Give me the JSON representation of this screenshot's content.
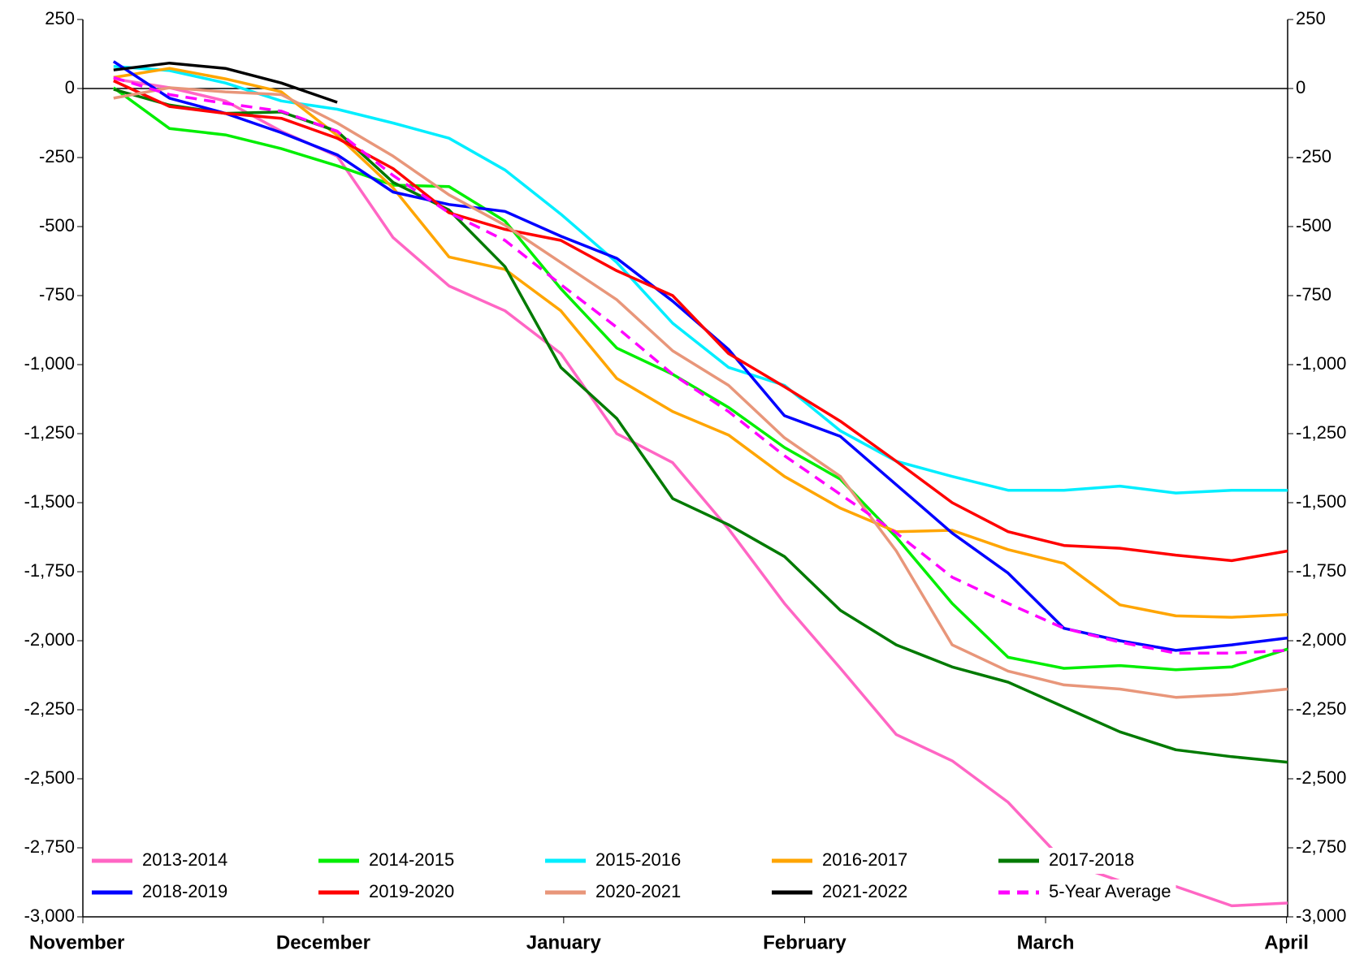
{
  "chart_data": {
    "type": "line",
    "x": [
      0,
      1,
      2,
      3,
      4,
      5,
      6,
      7,
      8,
      9,
      10,
      11,
      12,
      13,
      14,
      15,
      16,
      17,
      18,
      19,
      20,
      21
    ],
    "xlim": [
      -0.55,
      21
    ],
    "xticks": [
      {
        "value": -0.55,
        "label": "November"
      },
      {
        "value": 3.75,
        "label": "December"
      },
      {
        "value": 8.05,
        "label": "January"
      },
      {
        "value": 12.36,
        "label": "February"
      },
      {
        "value": 16.67,
        "label": "March"
      },
      {
        "value": 20.98,
        "label": "April"
      }
    ],
    "ylim": [
      -3000,
      250
    ],
    "yticks": [
      250,
      0,
      -250,
      -500,
      -750,
      {
        "value": -1000,
        "label": "-1,000"
      },
      {
        "value": -1250,
        "label": "-1,250"
      },
      {
        "value": -1500,
        "label": "-1,500"
      },
      {
        "value": -1750,
        "label": "-1,750"
      },
      {
        "value": -2000,
        "label": "-2,000"
      },
      {
        "value": -2250,
        "label": "-2,250"
      },
      {
        "value": -2500,
        "label": "-2,500"
      },
      {
        "value": -2750,
        "label": "-2,750"
      },
      {
        "value": -3000,
        "label": "-3,000"
      }
    ],
    "series": [
      {
        "name": "2013-2014",
        "color": "#ff66c4",
        "values": [
          35,
          3,
          -45,
          -155,
          -245,
          -540,
          -715,
          -805,
          -960,
          -1250,
          -1355,
          -1595,
          -1865,
          -2100,
          -2340,
          -2435,
          -2585,
          -2800,
          -2870,
          -2890,
          -2960,
          -2950
        ]
      },
      {
        "name": "2014-2015",
        "color": "#00ee00",
        "values": [
          3,
          -145,
          -168,
          -218,
          -280,
          -350,
          -355,
          -480,
          -725,
          -940,
          -1035,
          -1155,
          -1300,
          -1415,
          -1625,
          -1865,
          -2060,
          -2100,
          -2090,
          -2105,
          -2095,
          -2030
        ]
      },
      {
        "name": "2015-2016",
        "color": "#00eeff",
        "values": [
          80,
          65,
          20,
          -45,
          -75,
          -125,
          -180,
          -295,
          -455,
          -630,
          -850,
          -1010,
          -1075,
          -1240,
          -1350,
          -1405,
          -1455,
          -1455,
          -1440,
          -1465,
          -1455,
          -1455
        ]
      },
      {
        "name": "2016-2017",
        "color": "#ffa500",
        "values": [
          40,
          73,
          35,
          -12,
          -170,
          -360,
          -610,
          -655,
          -805,
          -1050,
          -1170,
          -1255,
          -1405,
          -1520,
          -1605,
          -1600,
          -1670,
          -1720,
          -1870,
          -1910,
          -1915,
          -1905
        ]
      },
      {
        "name": "2017-2018",
        "color": "#007a00",
        "values": [
          -3,
          -60,
          -90,
          -85,
          -155,
          -340,
          -440,
          -645,
          -1010,
          -1195,
          -1485,
          -1580,
          -1695,
          -1890,
          -2015,
          -2095,
          -2150,
          -2240,
          -2330,
          -2395,
          -2420,
          -2440
        ]
      },
      {
        "name": "2018-2019",
        "color": "#0000ff",
        "values": [
          98,
          -35,
          -90,
          -160,
          -240,
          -375,
          -420,
          -445,
          -535,
          -615,
          -770,
          -945,
          -1185,
          -1260,
          -1435,
          -1610,
          -1755,
          -1955,
          -2000,
          -2035,
          -2015,
          -1990
        ]
      },
      {
        "name": "2019-2020",
        "color": "#ff0000",
        "values": [
          28,
          -65,
          -90,
          -108,
          -180,
          -290,
          -450,
          -510,
          -550,
          -660,
          -750,
          -960,
          -1080,
          -1205,
          -1350,
          -1500,
          -1605,
          -1655,
          -1665,
          -1690,
          -1710,
          -1675
        ]
      },
      {
        "name": "2020-2021",
        "color": "#e8967a",
        "values": [
          -35,
          3,
          -12,
          -22,
          -125,
          -245,
          -385,
          -495,
          -630,
          -765,
          -950,
          -1075,
          -1265,
          -1405,
          -1675,
          -2015,
          -2110,
          -2160,
          -2175,
          -2205,
          -2195,
          -2175
        ]
      },
      {
        "name": "2021-2022",
        "color": "#000000",
        "values": [
          67,
          92,
          73,
          20,
          -50,
          null,
          null,
          null,
          null,
          null,
          null,
          null,
          null,
          null,
          null,
          null,
          null,
          null,
          null,
          null,
          null,
          null
        ]
      },
      {
        "name": "5-Year Average",
        "color": "#ff00ff",
        "style": "dashed",
        "values": [
          40,
          -22,
          -54,
          -82,
          -155,
          -315,
          -450,
          -550,
          -710,
          -865,
          -1035,
          -1170,
          -1330,
          -1470,
          -1610,
          -1770,
          -1865,
          -1955,
          -2005,
          -2045,
          -2045,
          -2035
        ]
      }
    ],
    "legend": "bottom"
  }
}
